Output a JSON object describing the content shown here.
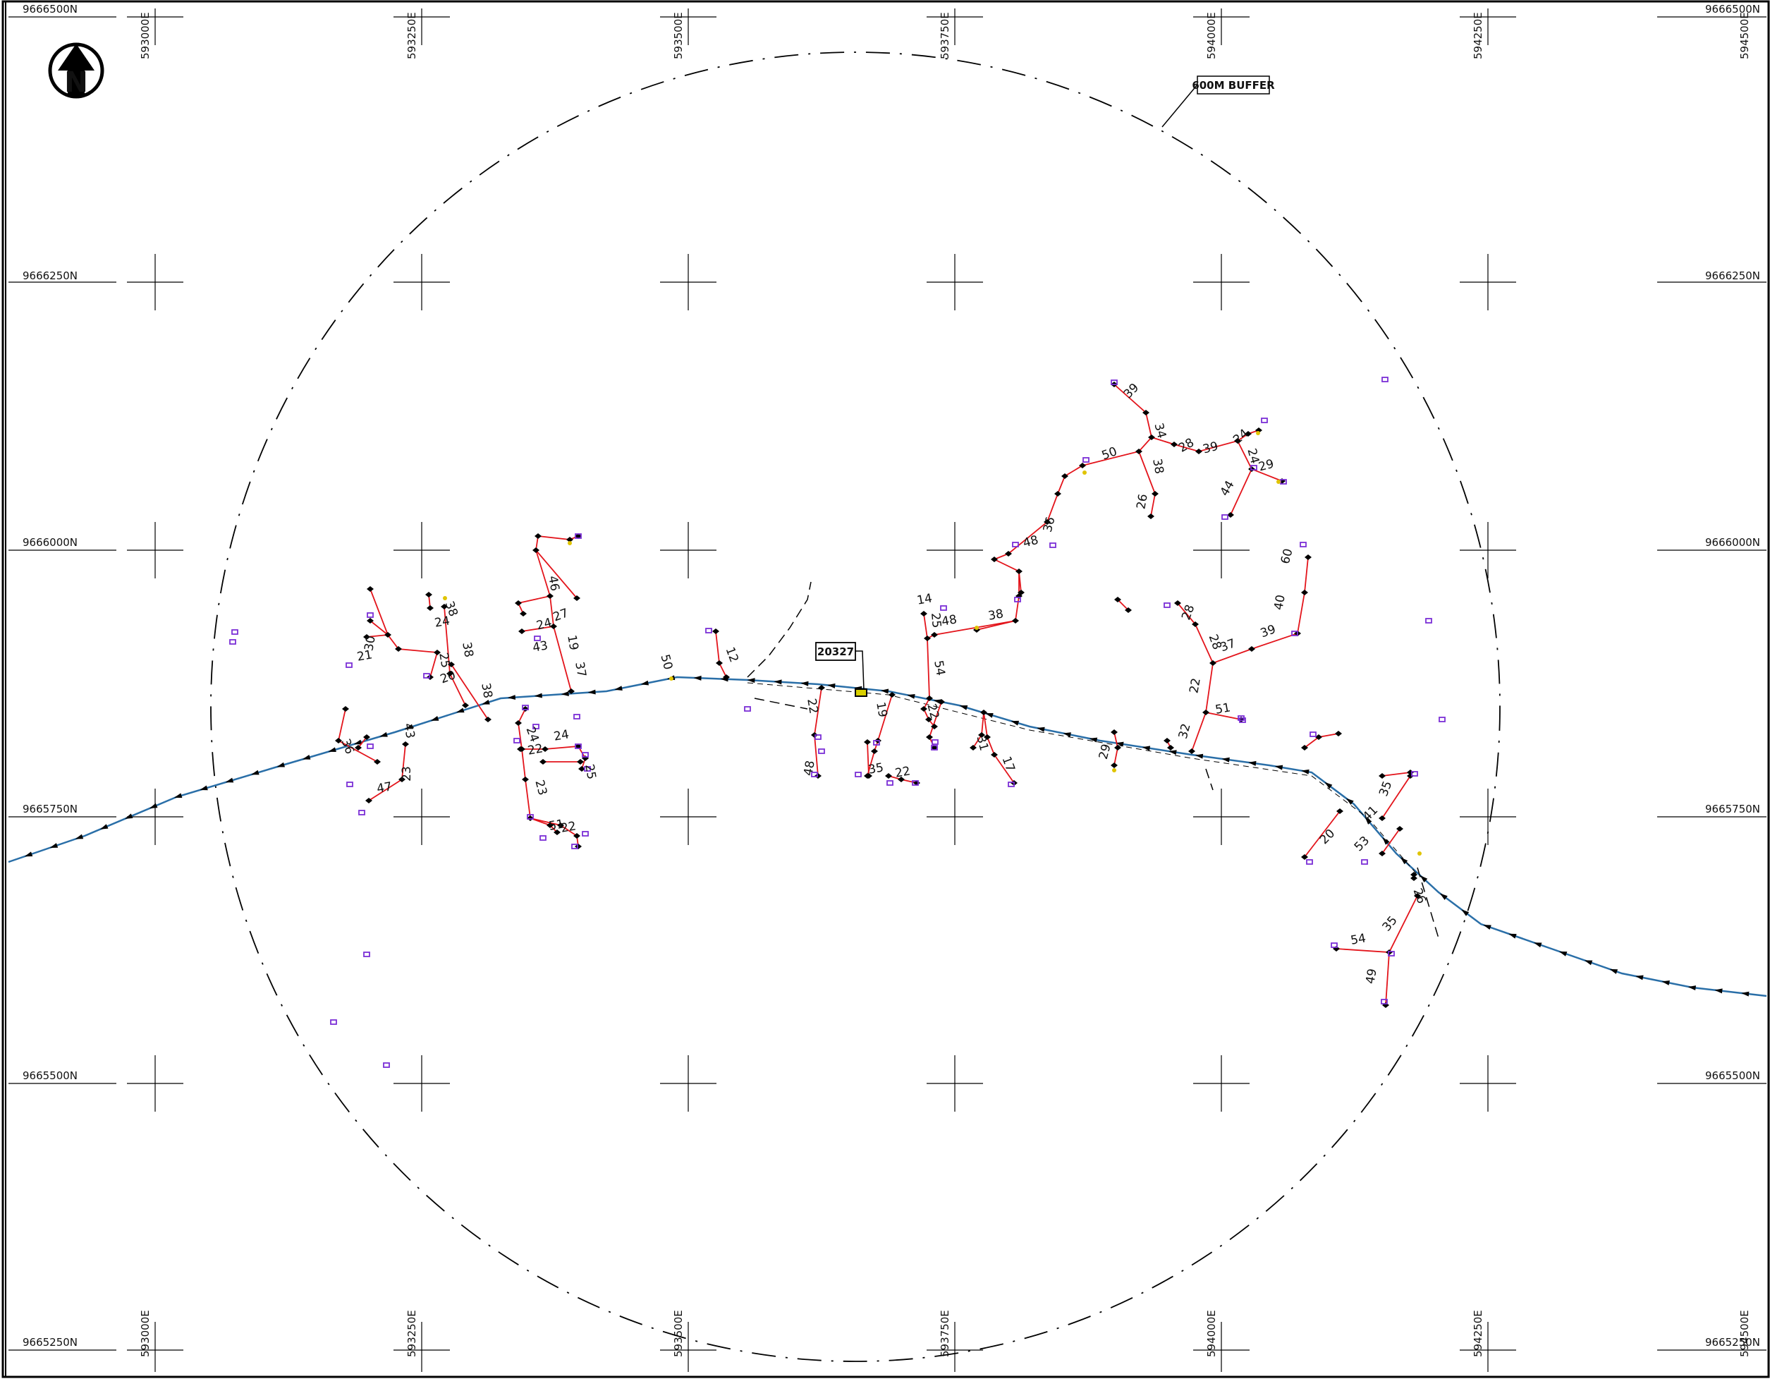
{
  "map": {
    "north_arrow_letter": "N",
    "buffer_label": "600M BUFFER",
    "site_label": "20327",
    "northings": [
      "9666500N",
      "9666250N",
      "9666000N",
      "9665750N",
      "9665500N",
      "9665250N"
    ],
    "eastings": [
      "593000E",
      "593250E",
      "593500E",
      "593750E",
      "594000E",
      "594250E",
      "594500E"
    ],
    "colors": {
      "frame": "#000000",
      "pipeline": "#2a6fa8",
      "spur": "#e3141b",
      "receptor": "#7b2fd6",
      "marker": "#e0c400"
    },
    "segment_labels": [
      "39",
      "34",
      "28",
      "39",
      "24",
      "24",
      "29",
      "50",
      "38",
      "26",
      "44",
      "36",
      "48",
      "38",
      "48",
      "25",
      "14",
      "54",
      "46",
      "27",
      "24",
      "19",
      "43",
      "37",
      "24",
      "38",
      "30",
      "21",
      "38",
      "25",
      "20",
      "38",
      "50",
      "12",
      "43",
      "23",
      "47",
      "36",
      "24",
      "24",
      "25",
      "22",
      "23",
      "51",
      "22",
      "22",
      "48",
      "19",
      "35",
      "22",
      "22",
      "31",
      "17",
      "29",
      "28",
      "28",
      "37",
      "39",
      "40",
      "60",
      "22",
      "51",
      "32",
      "35",
      "41",
      "20",
      "53",
      "26",
      "35",
      "54",
      "49",
      "45"
    ]
  }
}
